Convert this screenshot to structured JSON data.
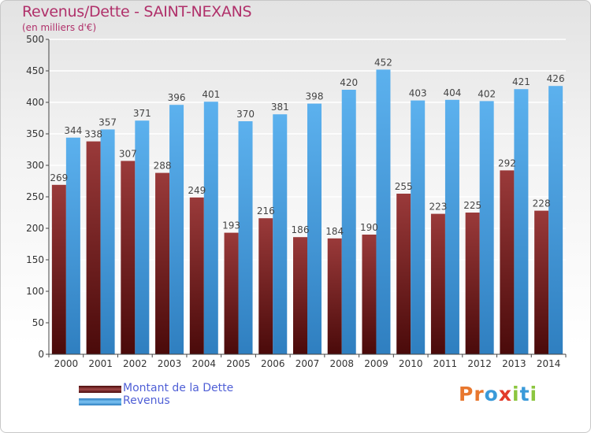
{
  "title": "Revenus/Dette - SAINT-NEXANS",
  "subtitle": "(en milliers d'€)",
  "logo": {
    "text": "Proxiti",
    "letters": [
      "P",
      "r",
      "o",
      "x",
      "i",
      "t",
      "i"
    ],
    "colors": [
      "#e8772e",
      "#e8772e",
      "#3a9ad9",
      "#e23a2b",
      "#8cc63f",
      "#3a9ad9",
      "#8cc63f"
    ]
  },
  "chart_data": {
    "type": "bar",
    "categories": [
      "2000",
      "2001",
      "2002",
      "2003",
      "2004",
      "2005",
      "2006",
      "2007",
      "2008",
      "2009",
      "2010",
      "2011",
      "2012",
      "2013",
      "2014"
    ],
    "series": [
      {
        "name": "Montant de la Dette",
        "color": "#7a1e1e",
        "values": [
          269,
          338,
          307,
          288,
          249,
          193,
          216,
          186,
          184,
          190,
          255,
          223,
          225,
          292,
          228
        ]
      },
      {
        "name": "Revenus",
        "color": "#46a3e6",
        "values": [
          344,
          357,
          371,
          396,
          401,
          370,
          381,
          398,
          420,
          452,
          403,
          404,
          402,
          421,
          426
        ]
      }
    ],
    "yticks": [
      0,
      50,
      100,
      150,
      200,
      250,
      300,
      350,
      400,
      450,
      500
    ],
    "ylim": [
      0,
      500
    ],
    "grid": true,
    "legend_position": "bottom-left"
  }
}
